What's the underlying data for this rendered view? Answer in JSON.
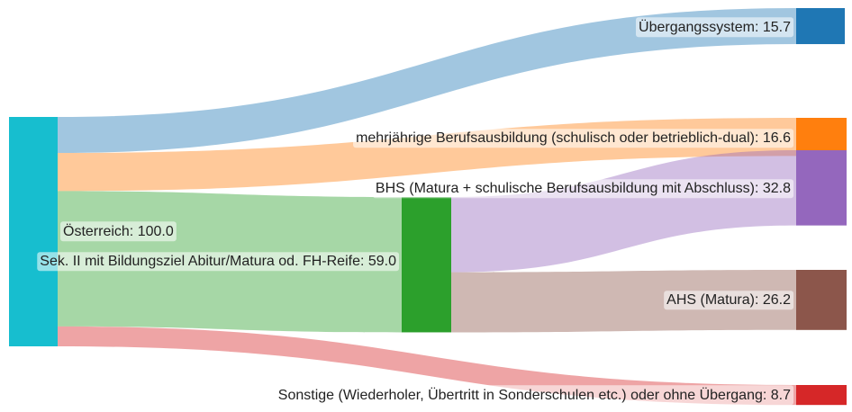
{
  "chart_data": {
    "type": "sankey",
    "nodes": [
      {
        "id": "oesterreich",
        "label": "Österreich",
        "value": 100.0,
        "color": "#17becf"
      },
      {
        "id": "sek2",
        "label": "Sek. II mit Bildungsziel Abitur/Matura od. FH-Reife",
        "value": 59.0,
        "color": "#2ca02c"
      },
      {
        "id": "uebergang",
        "label": "Übergangssystem",
        "value": 15.7,
        "color": "#1f77b4"
      },
      {
        "id": "berufsausbildung",
        "label": "mehrjährige Berufsausbildung (schulisch oder betrieblich-dual)",
        "value": 16.6,
        "color": "#ff7f0e"
      },
      {
        "id": "bhs",
        "label": "BHS (Matura + schulische Berufsausbildung mit Abschluss)",
        "value": 32.8,
        "color": "#9467bd"
      },
      {
        "id": "ahs",
        "label": "AHS (Matura)",
        "value": 26.2,
        "color": "#8c564b"
      },
      {
        "id": "sonstige",
        "label": "Sonstige (Wiederholer, Übertritt in Sonderschulen etc.) oder ohne Übergang",
        "value": 8.7,
        "color": "#d62728"
      }
    ],
    "links": [
      {
        "source": "oesterreich",
        "target": "uebergang",
        "value": 15.7,
        "color": "#1f77b4"
      },
      {
        "source": "oesterreich",
        "target": "berufsausbildung",
        "value": 16.6,
        "color": "#ff7f0e"
      },
      {
        "source": "oesterreich",
        "target": "sek2",
        "value": 59.0,
        "color": "#2ca02c"
      },
      {
        "source": "oesterreich",
        "target": "sonstige",
        "value": 8.7,
        "color": "#d62728"
      },
      {
        "source": "sek2",
        "target": "bhs",
        "value": 32.8,
        "color": "#9467bd"
      },
      {
        "source": "sek2",
        "target": "ahs",
        "value": 26.2,
        "color": "#8c564b"
      }
    ]
  }
}
